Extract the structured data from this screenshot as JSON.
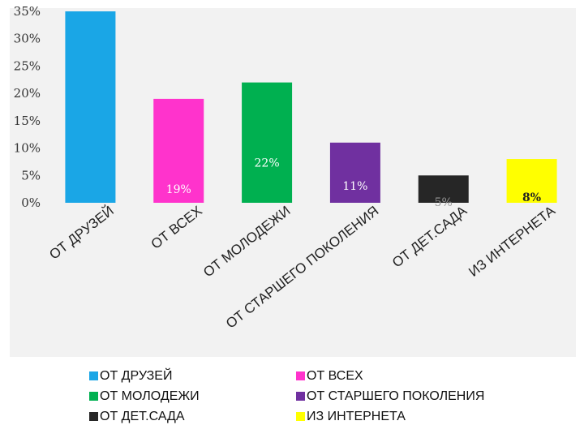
{
  "chart_data": {
    "type": "bar",
    "categories": [
      "ОТ ДРУЗЕЙ",
      "ОТ ВСЕХ",
      "ОТ МОЛОДЕЖИ",
      "ОТ СТАРШЕГО ПОКОЛЕНИЯ",
      "ОТ ДЕТ.САДА",
      "ИЗ ИНТЕРНЕТА"
    ],
    "values": [
      35,
      19,
      22,
      11,
      5,
      8
    ],
    "data_labels": [
      "",
      "19%",
      "22%",
      "11%",
      "5%",
      "8%"
    ],
    "colors": [
      "#1aa6e6",
      "#ff33cc",
      "#00b050",
      "#7030a0",
      "#262626",
      "#ffff00"
    ],
    "label_colors": [
      "#ffffff",
      "#ffffff",
      "#ffffff",
      "#ffffff",
      "#999999",
      "#222222"
    ],
    "ylim": [
      0,
      35
    ],
    "yticks": [
      0,
      5,
      10,
      15,
      20,
      25,
      30,
      35
    ],
    "ytick_labels": [
      "0%",
      "5%",
      "10%",
      "15%",
      "20%",
      "25%",
      "30%",
      "35%"
    ],
    "grid": false,
    "legend_position": "bottom",
    "title": "",
    "xlabel": "",
    "ylabel": ""
  }
}
